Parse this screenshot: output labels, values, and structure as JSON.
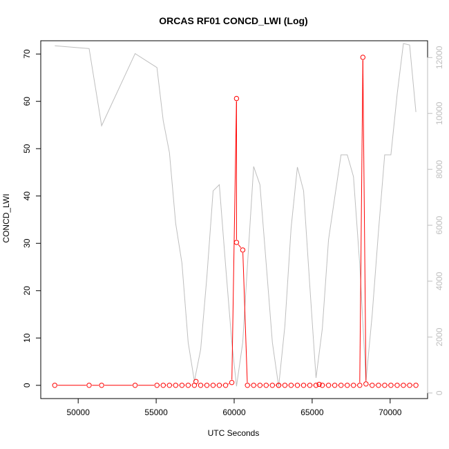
{
  "chart_data": {
    "type": "line",
    "title": "ORCAS RF01 CONCD_LWI (Log)",
    "xlabel": "UTC Seconds",
    "ylabel": "CONCD_LWI",
    "xlim": [
      47600,
      72400
    ],
    "ylim": [
      -2.8,
      72.8
    ],
    "y2lim": [
      -200,
      12600
    ],
    "x_ticks": [
      50000,
      55000,
      60000,
      65000,
      70000
    ],
    "y_ticks": [
      0,
      10,
      20,
      30,
      40,
      50,
      60,
      70
    ],
    "y2_ticks": [
      0,
      2000,
      4000,
      6000,
      8000,
      10000,
      12000
    ],
    "grid": false,
    "series": [
      {
        "axis": "left",
        "color": "#ff0000",
        "marker": "open-circle",
        "points": [
          [
            48500,
            0
          ],
          [
            50700,
            0
          ],
          [
            51500,
            0
          ],
          [
            53650,
            0
          ],
          [
            55050,
            0
          ],
          [
            55450,
            0
          ],
          [
            55850,
            0
          ],
          [
            56250,
            0
          ],
          [
            56650,
            0
          ],
          [
            57050,
            0
          ],
          [
            57450,
            0
          ],
          [
            57550,
            0.8
          ],
          [
            57850,
            0
          ],
          [
            58250,
            0
          ],
          [
            58650,
            0
          ],
          [
            59050,
            0
          ],
          [
            59450,
            0
          ],
          [
            59850,
            0.6
          ],
          [
            60150,
            60.6
          ],
          [
            60150,
            30.2
          ],
          [
            60550,
            28.6
          ],
          [
            60850,
            0
          ],
          [
            61250,
            0
          ],
          [
            61650,
            0
          ],
          [
            62050,
            0
          ],
          [
            62450,
            0
          ],
          [
            62850,
            0
          ],
          [
            62850,
            0
          ],
          [
            63250,
            0
          ],
          [
            63650,
            0
          ],
          [
            64050,
            0
          ],
          [
            64450,
            0
          ],
          [
            64850,
            0
          ],
          [
            65250,
            0
          ],
          [
            65450,
            0.2
          ],
          [
            65650,
            0
          ],
          [
            66050,
            0
          ],
          [
            66450,
            0
          ],
          [
            66850,
            0
          ],
          [
            67250,
            0
          ],
          [
            67650,
            0
          ],
          [
            68050,
            0
          ],
          [
            68250,
            69.3
          ],
          [
            68450,
            0.3
          ],
          [
            68850,
            0
          ],
          [
            69250,
            0
          ],
          [
            69650,
            0
          ],
          [
            70050,
            0
          ],
          [
            70450,
            0
          ],
          [
            70850,
            0
          ],
          [
            71250,
            0
          ],
          [
            71650,
            0
          ]
        ]
      },
      {
        "axis": "right",
        "color": "#bebebe",
        "marker": "none",
        "points": [
          [
            48500,
            12420
          ],
          [
            50700,
            12320
          ],
          [
            51500,
            9560
          ],
          [
            53650,
            12140
          ],
          [
            55050,
            11640
          ],
          [
            55450,
            9740
          ],
          [
            55850,
            8600
          ],
          [
            56250,
            6070
          ],
          [
            56650,
            4640
          ],
          [
            57050,
            1810
          ],
          [
            57450,
            420
          ],
          [
            57850,
            1560
          ],
          [
            58250,
            4160
          ],
          [
            58650,
            7230
          ],
          [
            59050,
            7450
          ],
          [
            59450,
            4560
          ],
          [
            59850,
            1810
          ],
          [
            60150,
            240
          ],
          [
            60550,
            1810
          ],
          [
            60850,
            4560
          ],
          [
            61250,
            8100
          ],
          [
            61650,
            7450
          ],
          [
            62050,
            4640
          ],
          [
            62450,
            1810
          ],
          [
            62850,
            230
          ],
          [
            63250,
            2400
          ],
          [
            63650,
            5900
          ],
          [
            64050,
            8080
          ],
          [
            64450,
            7230
          ],
          [
            64850,
            3830
          ],
          [
            65250,
            540
          ],
          [
            65650,
            2300
          ],
          [
            66050,
            5480
          ],
          [
            66450,
            7000
          ],
          [
            66850,
            8520
          ],
          [
            67250,
            8520
          ],
          [
            67650,
            7740
          ],
          [
            68050,
            4600
          ],
          [
            68450,
            420
          ],
          [
            68850,
            2800
          ],
          [
            69250,
            5780
          ],
          [
            69650,
            8520
          ],
          [
            70050,
            8520
          ],
          [
            70450,
            10700
          ],
          [
            70850,
            12500
          ],
          [
            71250,
            12450
          ],
          [
            71650,
            10050
          ]
        ]
      }
    ]
  }
}
